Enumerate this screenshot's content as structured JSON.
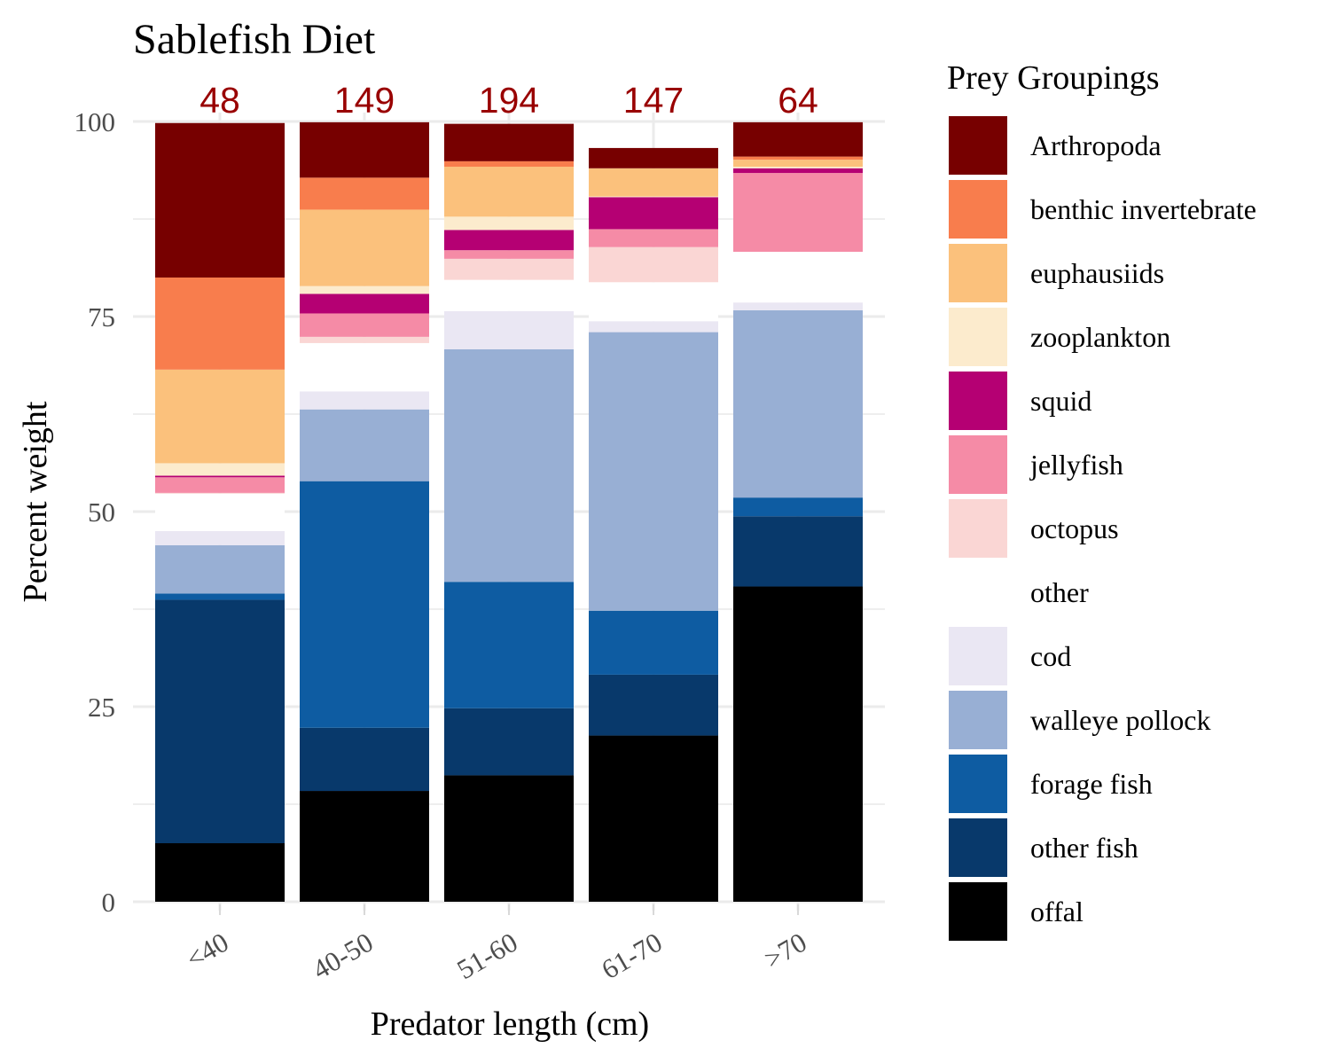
{
  "chart_data": {
    "type": "bar",
    "stacked": true,
    "title": "Sablefish Diet",
    "xlabel": "Predator length (cm)",
    "ylabel": "Percent weight",
    "ylim": [
      0,
      100
    ],
    "yticks": [
      0,
      25,
      50,
      75,
      100
    ],
    "grid": true,
    "legend_title": "Prey Groupings",
    "legend_position": "right",
    "categories": [
      "<40",
      "40-50",
      "51-60",
      "61-70",
      ">70"
    ],
    "sample_sizes": [
      "48",
      "149",
      "194",
      "147",
      "64"
    ],
    "sample_size_color": "#990000",
    "series": [
      {
        "name": "offal",
        "color": "#000000",
        "values": [
          7.5,
          14.2,
          16.2,
          21.3,
          40.4
        ]
      },
      {
        "name": "other fish",
        "color": "#08396B",
        "values": [
          31.2,
          8.1,
          8.6,
          7.8,
          9.0
        ]
      },
      {
        "name": "forage fish",
        "color": "#0E5CA2",
        "values": [
          0.8,
          31.6,
          16.2,
          8.2,
          2.4
        ]
      },
      {
        "name": "walleye pollock",
        "color": "#98AFD4",
        "values": [
          6.2,
          9.2,
          29.8,
          35.7,
          24.0
        ]
      },
      {
        "name": "cod",
        "color": "#EAE7F3",
        "values": [
          1.8,
          2.3,
          4.9,
          1.4,
          1.0
        ]
      },
      {
        "name": "other",
        "color": "#FFFFFF",
        "values": [
          4.8,
          6.2,
          4.0,
          5.0,
          6.5
        ]
      },
      {
        "name": "octopus",
        "color": "#FAD6D4",
        "values": [
          0.1,
          0.8,
          2.7,
          4.5,
          0.0
        ]
      },
      {
        "name": "jellyfish",
        "color": "#F58BA6",
        "values": [
          2.0,
          3.0,
          1.1,
          2.3,
          10.1
        ]
      },
      {
        "name": "squid",
        "color": "#B50073",
        "values": [
          0.2,
          2.5,
          2.6,
          4.1,
          0.6
        ]
      },
      {
        "name": "zooplankton",
        "color": "#FCEBCD",
        "values": [
          1.6,
          1.0,
          1.7,
          0.1,
          0.2
        ]
      },
      {
        "name": "euphausiids",
        "color": "#FBC17C",
        "values": [
          12.0,
          9.8,
          6.4,
          3.6,
          0.9
        ]
      },
      {
        "name": "benthic invertebrate",
        "color": "#F87D4D",
        "values": [
          11.8,
          4.1,
          0.7,
          0.0,
          0.4
        ]
      },
      {
        "name": "Arthropoda",
        "color": "#770000",
        "values": [
          19.8,
          7.1,
          4.8,
          2.6,
          4.4
        ]
      }
    ],
    "legend_order": [
      "Arthropoda",
      "benthic invertebrate",
      "euphausiids",
      "zooplankton",
      "squid",
      "jellyfish",
      "octopus",
      "other",
      "cod",
      "walleye pollock",
      "forage fish",
      "other fish",
      "offal"
    ]
  }
}
